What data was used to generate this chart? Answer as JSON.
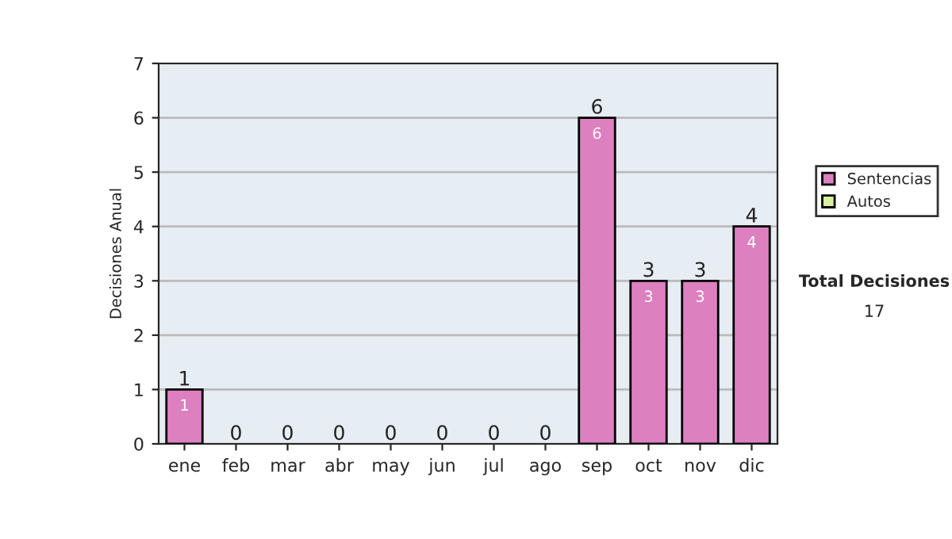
{
  "chart_data": {
    "type": "bar",
    "stacked": true,
    "ylabel": "Decisiones Anual",
    "categories": [
      "ene",
      "feb",
      "mar",
      "abr",
      "may",
      "jun",
      "jul",
      "ago",
      "sep",
      "oct",
      "nov",
      "dic"
    ],
    "series": [
      {
        "name": "Sentencias",
        "color": "#dd80c0",
        "values": [
          1,
          0,
          0,
          0,
          0,
          0,
          0,
          0,
          6,
          3,
          3,
          4
        ],
        "value_labels": [
          "1",
          null,
          null,
          null,
          null,
          null,
          null,
          null,
          "6",
          "3",
          "3",
          "4"
        ]
      },
      {
        "name": "Autos",
        "color": "#d8f0a0",
        "values": [
          0,
          0,
          0,
          0,
          0,
          0,
          0,
          0,
          0,
          0,
          0,
          0
        ]
      }
    ],
    "totals": [
      "1",
      "0",
      "0",
      "0",
      "0",
      "0",
      "0",
      "0",
      "6",
      "3",
      "3",
      "4"
    ],
    "ylim": [
      0,
      7
    ],
    "yticks": [
      0,
      1,
      2,
      3,
      4,
      5,
      6,
      7
    ],
    "grid": "y",
    "legend": "right",
    "annotations": [
      "Total Decisiones",
      "17"
    ]
  }
}
